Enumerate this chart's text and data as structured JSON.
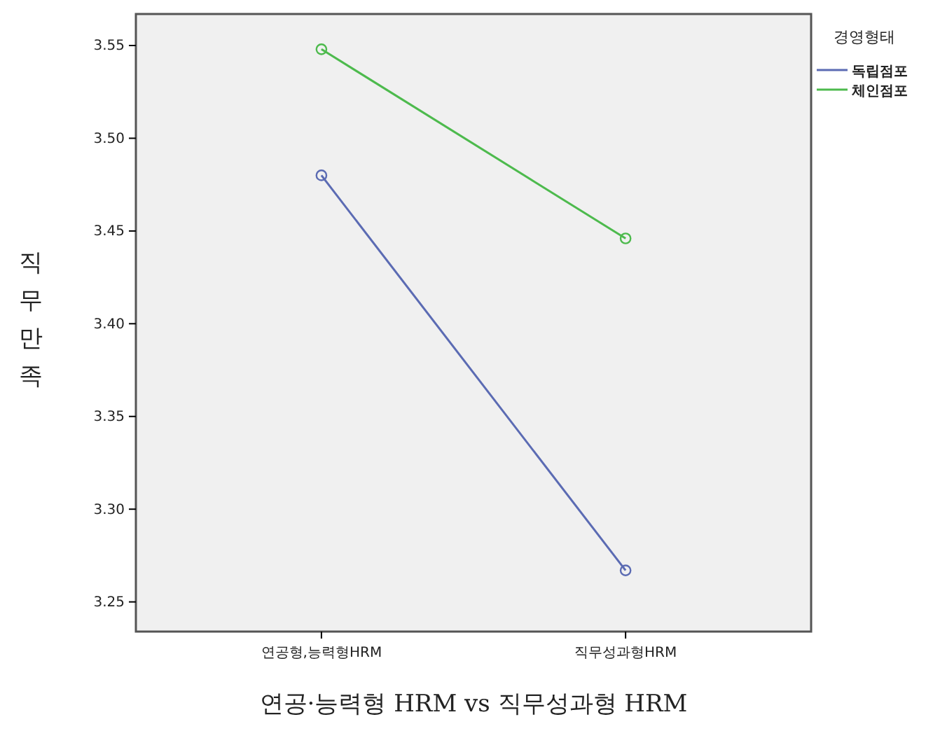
{
  "chart_data": {
    "type": "line",
    "xlabel": "연공·능력형 HRM vs 직무성과형 HRM",
    "ylabel": "직무만족",
    "legend_title": "경영형태",
    "categories": [
      "연공형,능력형HRM",
      "직무성과형HRM"
    ],
    "series": [
      {
        "name": "독립점포",
        "color": "#5b6bb3",
        "values": [
          3.48,
          3.267
        ]
      },
      {
        "name": "체인점포",
        "color": "#4dba4d",
        "values": [
          3.548,
          3.446
        ]
      }
    ],
    "ylim": [
      3.234,
      3.567
    ],
    "yticks": [
      {
        "value": 3.25,
        "label": "3.25"
      },
      {
        "value": 3.3,
        "label": "3.30"
      },
      {
        "value": 3.35,
        "label": "3.35"
      },
      {
        "value": 3.4,
        "label": "3.40"
      },
      {
        "value": 3.45,
        "label": "3.45"
      },
      {
        "value": 3.5,
        "label": "3.50"
      },
      {
        "value": 3.55,
        "label": "3.55"
      }
    ],
    "grid": false,
    "legend": "top right",
    "marker": "circle",
    "line_style": "solid"
  }
}
